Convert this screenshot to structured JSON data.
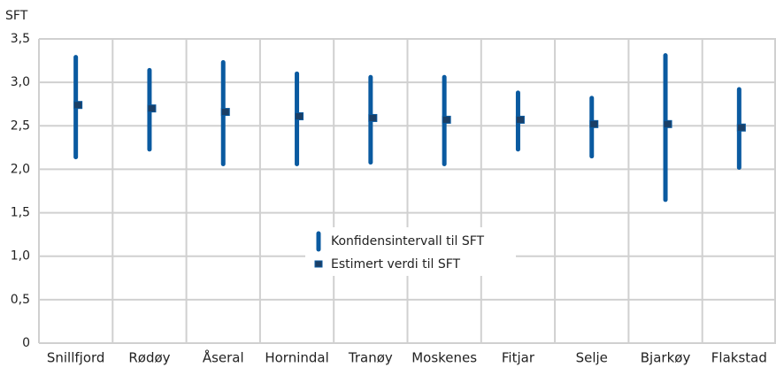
{
  "chart_data": {
    "type": "interval",
    "y_label": "SFT",
    "categories": [
      "Snillfjord",
      "Rødøy",
      "Åseral",
      "Hornindal",
      "Tranøy",
      "Moskenes",
      "Fitjar",
      "Selje",
      "Bjarkøy",
      "Flakstad"
    ],
    "series": [
      {
        "name": "Konfidensintervall til SFT",
        "color": "#0a5aa0",
        "low": [
          2.14,
          2.23,
          2.06,
          2.06,
          2.08,
          2.06,
          2.23,
          2.15,
          1.65,
          2.02
        ],
        "high": [
          3.29,
          3.14,
          3.23,
          3.1,
          3.06,
          3.06,
          2.88,
          2.82,
          3.31,
          2.92
        ]
      },
      {
        "name": "Estimert verdi til SFT",
        "color": "#1b3f66",
        "values": [
          2.74,
          2.7,
          2.66,
          2.61,
          2.59,
          2.57,
          2.57,
          2.52,
          2.52,
          2.48
        ]
      }
    ],
    "ylim": [
      0,
      3.5
    ],
    "yticks": [
      0,
      {
        "value": 0.5,
        "label": "0,5"
      },
      {
        "value": 1,
        "label": "1,0"
      },
      {
        "value": 1.5,
        "label": "1,5"
      },
      {
        "value": 2,
        "label": "2,0"
      },
      {
        "value": 2.5,
        "label": "2,5"
      },
      {
        "value": 3,
        "label": "3,0"
      },
      {
        "value": 3.5,
        "label": "3,5"
      }
    ],
    "grid": true
  }
}
